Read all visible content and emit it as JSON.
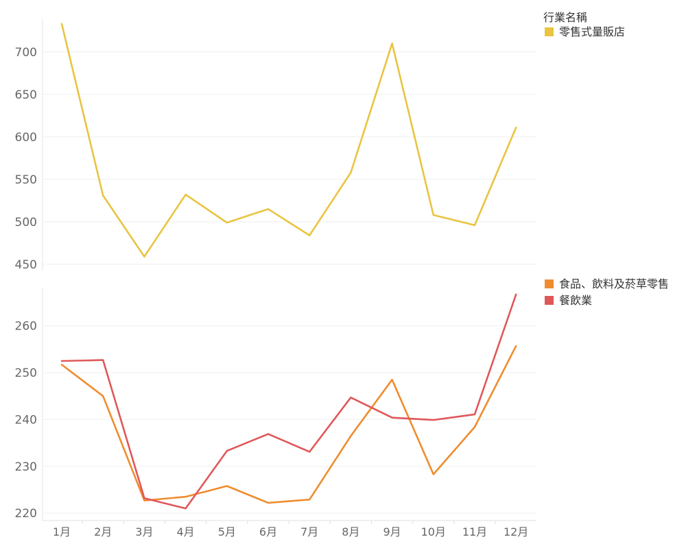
{
  "chart_data": [
    {
      "type": "line",
      "categories": [
        "1月",
        "2月",
        "3月",
        "4月",
        "5月",
        "6月",
        "7月",
        "8月",
        "9月",
        "10月",
        "11月",
        "12月"
      ],
      "series": [
        {
          "name": "零售式量販店",
          "color": "#e9c440",
          "values": [
            733,
            531,
            459,
            532,
            499,
            515,
            484,
            558,
            710,
            508,
            496,
            611
          ]
        }
      ],
      "yticks": [
        450,
        500,
        550,
        600,
        650,
        700
      ],
      "ylim": [
        445,
        745
      ],
      "grid": true,
      "legend": "top-right"
    },
    {
      "type": "line",
      "categories": [
        "1月",
        "2月",
        "3月",
        "4月",
        "5月",
        "6月",
        "7月",
        "8月",
        "9月",
        "10月",
        "11月",
        "12月"
      ],
      "series": [
        {
          "name": "食品、飲料及菸草零售",
          "color": "#ef8c2e",
          "values": [
            251.7,
            245.0,
            222.7,
            223.5,
            225.8,
            222.2,
            222.9,
            236.5,
            248.5,
            228.3,
            238.4,
            255.7
          ]
        },
        {
          "name": "餐飲業",
          "color": "#e05759",
          "values": [
            252.5,
            252.7,
            223.2,
            221.0,
            233.3,
            236.9,
            233.1,
            244.7,
            240.4,
            239.9,
            241.1,
            266.7
          ]
        }
      ],
      "yticks": [
        220,
        230,
        240,
        250,
        260
      ],
      "ylim": [
        219,
        268
      ],
      "grid": true,
      "legend": "right"
    }
  ],
  "legend_title": "行業名稱"
}
